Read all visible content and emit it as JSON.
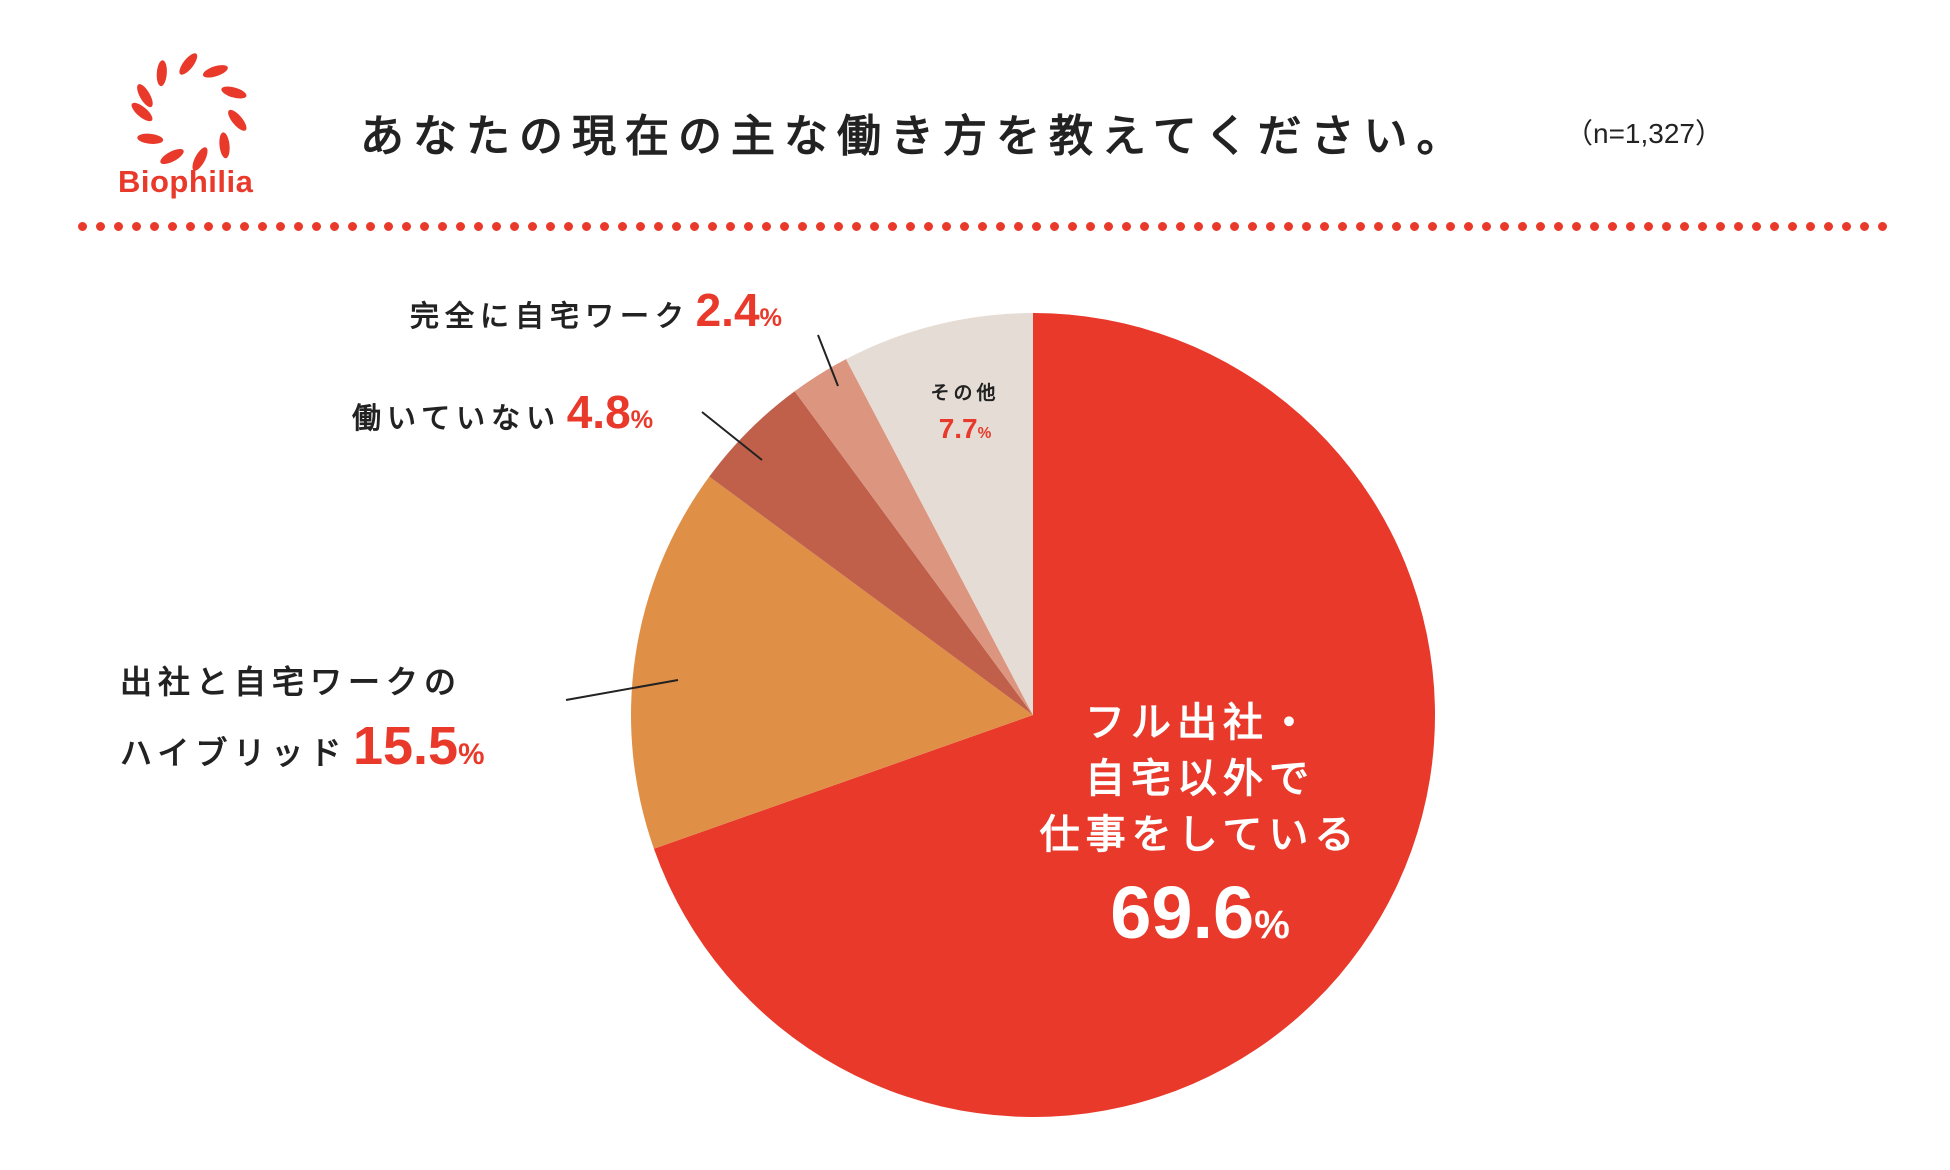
{
  "header": {
    "logo_text": "Biophilia",
    "title": "あなたの現在の主な働き方を教えてください。",
    "sample_size": "（n=1,327）"
  },
  "colors": {
    "brand": "#e8392b",
    "full_office": "#e8392b",
    "hybrid": "#e08f47",
    "not_working": "#c0604b",
    "full_home": "#dc9680",
    "other": "#e5ddd5"
  },
  "chart_data": {
    "type": "pie",
    "title": "あなたの現在の主な働き方を教えてください。",
    "n": "1,327",
    "start_angle_deg": 0,
    "direction": "clockwise",
    "slices": [
      {
        "key": "full_office",
        "label_lines": [
          "フル出社・",
          "自宅以外で",
          "仕事をしている"
        ],
        "value": 69.6,
        "value_text": "69.6",
        "color": "#e8392b"
      },
      {
        "key": "hybrid",
        "label_lines": [
          "出社と自宅ワークの",
          "ハイブリッド"
        ],
        "value": 15.5,
        "value_text": "15.5",
        "color": "#e08f47"
      },
      {
        "key": "not_working",
        "label_lines": [
          "働いていない"
        ],
        "value": 4.8,
        "value_text": "4.8",
        "color": "#c0604b"
      },
      {
        "key": "full_home",
        "label_lines": [
          "完全に自宅ワーク"
        ],
        "value": 2.4,
        "value_text": "2.4",
        "color": "#dc9680"
      },
      {
        "key": "other",
        "label_lines": [
          "その他"
        ],
        "value": 7.7,
        "value_text": "7.7",
        "color": "#e5ddd5"
      }
    ],
    "percent_symbol": "%"
  }
}
